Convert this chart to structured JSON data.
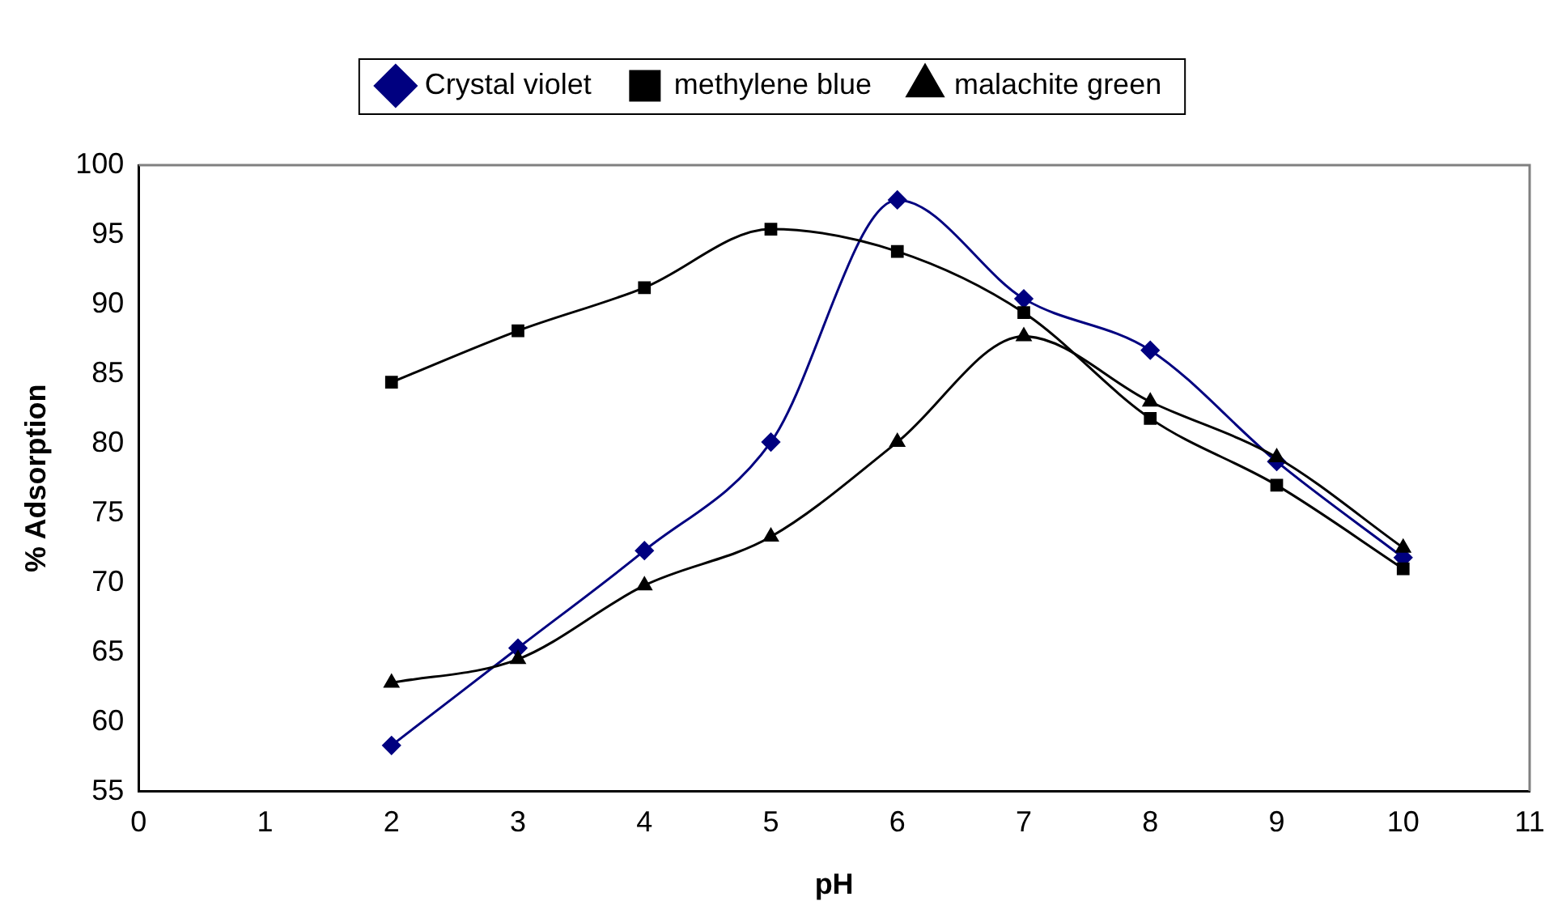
{
  "chart_data": {
    "type": "line",
    "xlabel": "pH",
    "ylabel": "% Adsorption",
    "xlim": [
      0,
      11
    ],
    "xticks": [
      0,
      1,
      2,
      3,
      4,
      5,
      6,
      7,
      8,
      9,
      10,
      11
    ],
    "ylim": [
      55,
      100
    ],
    "yticks": [
      55,
      60,
      65,
      70,
      75,
      80,
      85,
      90,
      95,
      100
    ],
    "x": [
      2,
      3,
      4,
      5,
      6,
      7,
      8,
      9,
      10
    ],
    "series": [
      {
        "name": "Crystal violet",
        "color": "#000080",
        "marker": "diamond",
        "values": [
          58.3,
          65.3,
          72.3,
          80.1,
          97.5,
          90.4,
          86.7,
          78.7,
          71.8
        ]
      },
      {
        "name": "methylene blue",
        "color": "#000000",
        "marker": "square",
        "values": [
          84.4,
          88.1,
          91.2,
          95.4,
          93.8,
          89.4,
          81.8,
          77.0,
          71.0
        ]
      },
      {
        "name": "malachite green",
        "color": "#000000",
        "marker": "triangle",
        "values": [
          62.8,
          64.5,
          69.8,
          73.3,
          80.1,
          87.7,
          83.0,
          79.0,
          72.5
        ]
      }
    ],
    "grid": false,
    "legend": "top",
    "line_style": "solid"
  }
}
